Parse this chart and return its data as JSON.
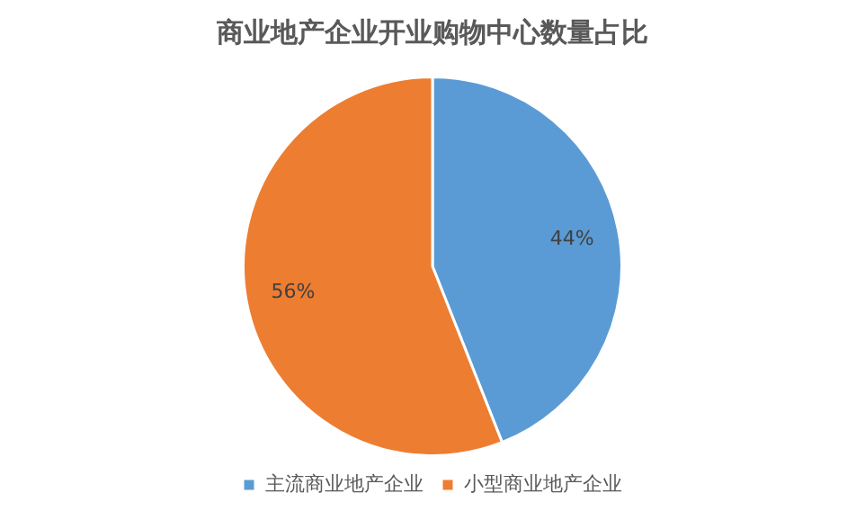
{
  "chart_data": {
    "type": "pie",
    "title": "商业地产企业开业购物中心数量占比",
    "categories": [
      "主流商业地产企业",
      "小型商业地产企业"
    ],
    "values": [
      44,
      56
    ],
    "colors": [
      "#5b9bd5",
      "#ed7d31"
    ],
    "value_labels": [
      "44%",
      "56%"
    ],
    "legend": "bottom"
  }
}
